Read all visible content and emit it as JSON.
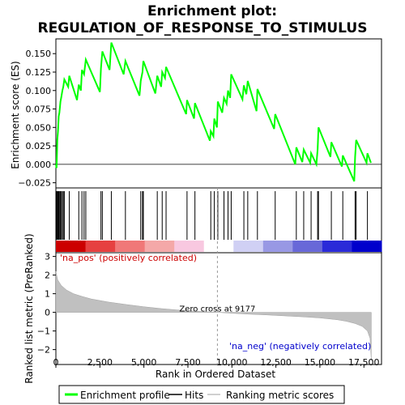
{
  "chart_data": {
    "type": "line",
    "title_line1": "Enrichment plot:",
    "title_line2": "REGULATION_OF_RESPONSE_TO_STIMULUS",
    "es_panel": {
      "ylabel": "Enrichment score (ES)",
      "ylim": [
        -0.032,
        0.17
      ],
      "yticks": [
        -0.025,
        0.0,
        0.025,
        0.05,
        0.075,
        0.1,
        0.125,
        0.15
      ],
      "ytick_labels": [
        "−0.025",
        "0.000",
        "0.025",
        "0.050",
        "0.075",
        "0.100",
        "0.125",
        "0.150"
      ],
      "series_name": "Enrichment profile",
      "color": "#00ff00",
      "points": [
        [
          0,
          0.0
        ],
        [
          40,
          -0.005
        ],
        [
          80,
          0.033
        ],
        [
          120,
          0.045
        ],
        [
          160,
          0.065
        ],
        [
          200,
          0.07
        ],
        [
          260,
          0.085
        ],
        [
          300,
          0.09
        ],
        [
          370,
          0.1
        ],
        [
          420,
          0.105
        ],
        [
          480,
          0.115
        ],
        [
          700,
          0.105
        ],
        [
          760,
          0.12
        ],
        [
          1200,
          0.087
        ],
        [
          1300,
          0.108
        ],
        [
          1420,
          0.1
        ],
        [
          1480,
          0.128
        ],
        [
          1600,
          0.122
        ],
        [
          1700,
          0.142
        ],
        [
          2500,
          0.098
        ],
        [
          2560,
          0.13
        ],
        [
          2640,
          0.153
        ],
        [
          3050,
          0.128
        ],
        [
          3150,
          0.165
        ],
        [
          3850,
          0.122
        ],
        [
          3950,
          0.14
        ],
        [
          4750,
          0.093
        ],
        [
          4820,
          0.113
        ],
        [
          4920,
          0.125
        ],
        [
          4970,
          0.14
        ],
        [
          5650,
          0.096
        ],
        [
          5760,
          0.12
        ],
        [
          5980,
          0.105
        ],
        [
          6040,
          0.125
        ],
        [
          6200,
          0.117
        ],
        [
          6260,
          0.132
        ],
        [
          7400,
          0.068
        ],
        [
          7450,
          0.087
        ],
        [
          7850,
          0.062
        ],
        [
          7900,
          0.083
        ],
        [
          8750,
          0.032
        ],
        [
          8800,
          0.045
        ],
        [
          8950,
          0.038
        ],
        [
          9000,
          0.062
        ],
        [
          9150,
          0.05
        ],
        [
          9200,
          0.085
        ],
        [
          9450,
          0.07
        ],
        [
          9550,
          0.09
        ],
        [
          9700,
          0.082
        ],
        [
          9780,
          0.1
        ],
        [
          9900,
          0.09
        ],
        [
          9960,
          0.122
        ],
        [
          10600,
          0.088
        ],
        [
          10680,
          0.107
        ],
        [
          10820,
          0.095
        ],
        [
          10900,
          0.113
        ],
        [
          11400,
          0.072
        ],
        [
          11450,
          0.102
        ],
        [
          12400,
          0.048
        ],
        [
          12460,
          0.068
        ],
        [
          13600,
          0.0
        ],
        [
          13660,
          0.023
        ],
        [
          14000,
          0.003
        ],
        [
          14080,
          0.02
        ],
        [
          14450,
          0.002
        ],
        [
          14500,
          0.015
        ],
        [
          14800,
          0.0
        ],
        [
          14870,
          0.02
        ],
        [
          14920,
          0.05
        ],
        [
          15600,
          0.01
        ],
        [
          15650,
          0.03
        ],
        [
          16250,
          -0.003
        ],
        [
          16300,
          0.012
        ],
        [
          16950,
          -0.023
        ],
        [
          17000,
          0.01
        ],
        [
          17060,
          0.033
        ],
        [
          17650,
          0.002
        ],
        [
          17700,
          0.015
        ],
        [
          17900,
          0.002
        ]
      ]
    },
    "hits_panel": {
      "series_name": "Hits",
      "hit_positions": [
        40,
        80,
        120,
        160,
        200,
        260,
        300,
        370,
        420,
        480,
        760,
        1300,
        1480,
        1600,
        1700,
        2560,
        2640,
        3150,
        3950,
        4820,
        4920,
        4970,
        5760,
        6040,
        6260,
        7450,
        7900,
        8800,
        9000,
        9200,
        9550,
        9780,
        9960,
        10680,
        10900,
        11450,
        12460,
        13660,
        14080,
        14500,
        14870,
        14920,
        15650,
        16300,
        17000,
        17060,
        17700
      ],
      "gradient": [
        "#cc0000",
        "#e64040",
        "#f07878",
        "#f4a8a8",
        "#f8c8e0",
        "#ffffff",
        "#d0d0f4",
        "#9898e4",
        "#6868d8",
        "#2a2ad8",
        "#0000cc"
      ]
    },
    "rank_panel": {
      "ylabel": "Ranked list metric (PreRanked)",
      "xlabel": "Rank in Ordered Dataset",
      "xlim": [
        0,
        18500
      ],
      "ylim": [
        -2.8,
        3.2
      ],
      "yticks": [
        -2,
        -1,
        0,
        1,
        2,
        3
      ],
      "ytick_labels": [
        "−2",
        "−1",
        "0",
        "1",
        "2",
        "3"
      ],
      "xticks": [
        0,
        2500,
        5000,
        7500,
        10000,
        12500,
        15000,
        17500
      ],
      "xtick_labels": [
        "0",
        "2,500",
        "5,000",
        "7,500",
        "10,000",
        "12,500",
        "15,000",
        "17,500"
      ],
      "series_name": "Ranking metric scores",
      "fill_color": "#c0c0c0",
      "zero_cross_rank": 9177,
      "zero_cross_label": "Zero cross at 9177",
      "pos_label": "'na_pos' (positively correlated)",
      "neg_label": "'na_neg' (negatively correlated)",
      "pos_color": "#cc0000",
      "neg_color": "#0000cc",
      "points": [
        [
          0,
          2.2
        ],
        [
          100,
          1.75
        ],
        [
          300,
          1.45
        ],
        [
          600,
          1.2
        ],
        [
          1000,
          1.0
        ],
        [
          1500,
          0.85
        ],
        [
          2000,
          0.72
        ],
        [
          3000,
          0.55
        ],
        [
          4000,
          0.42
        ],
        [
          5000,
          0.3
        ],
        [
          6000,
          0.2
        ],
        [
          7000,
          0.12
        ],
        [
          8000,
          0.06
        ],
        [
          9177,
          0.0
        ],
        [
          10000,
          -0.05
        ],
        [
          11000,
          -0.1
        ],
        [
          12000,
          -0.14
        ],
        [
          13000,
          -0.19
        ],
        [
          14000,
          -0.24
        ],
        [
          15000,
          -0.3
        ],
        [
          16000,
          -0.4
        ],
        [
          16500,
          -0.48
        ],
        [
          17000,
          -0.6
        ],
        [
          17400,
          -0.75
        ],
        [
          17700,
          -1.0
        ],
        [
          17850,
          -1.4
        ],
        [
          17920,
          -2.6
        ]
      ]
    },
    "legend": {
      "entries": [
        "Enrichment profile",
        "Hits",
        "Ranking metric scores"
      ]
    }
  }
}
